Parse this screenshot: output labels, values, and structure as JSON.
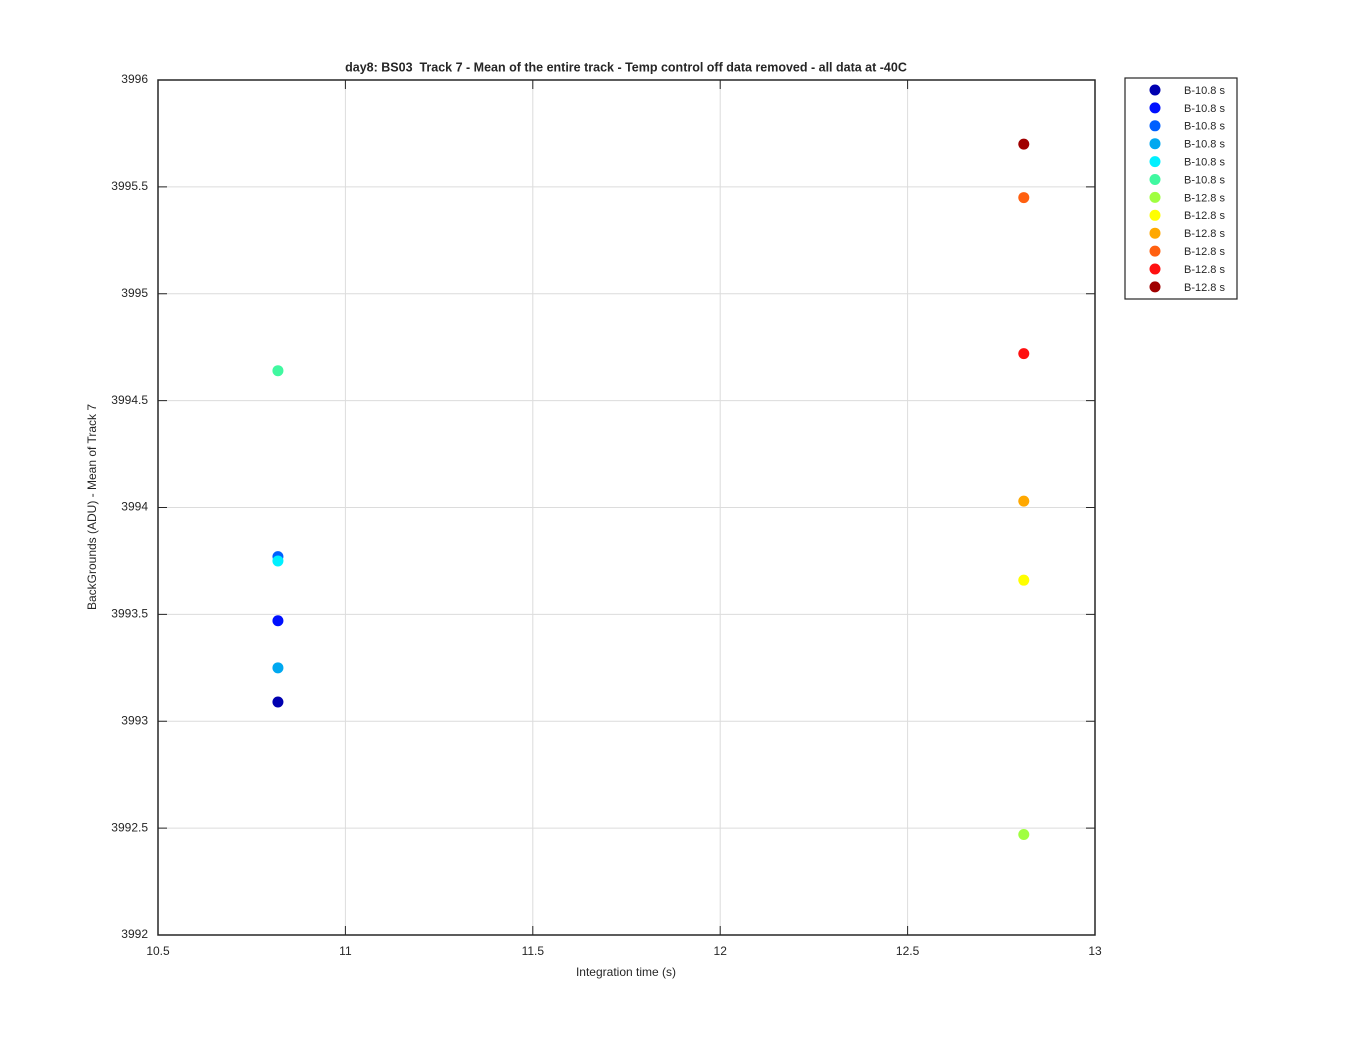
{
  "chart_data": {
    "type": "scatter",
    "title": "day8: BS03  Track 7 - Mean of the entire track - Temp control off data removed - all data at -40C",
    "x_label": "Integration time (s)",
    "y_label": "BackGrounds (ADU) - Mean of Track 7",
    "xlim": [
      10.5,
      13
    ],
    "xticks": [
      10.5,
      11,
      11.5,
      12,
      12.5,
      13
    ],
    "ylim": [
      3992,
      3996
    ],
    "yticks": [
      3992,
      3992.5,
      3993,
      3993.5,
      3994,
      3994.5,
      3995,
      3995.5,
      3996
    ],
    "grid": true,
    "legend_position": "outside-top-right",
    "series": [
      {
        "name": "B-10.8 s",
        "color": "#0000b0",
        "x": [
          10.82
        ],
        "values": [
          3993.09
        ]
      },
      {
        "name": "B-10.8 s",
        "color": "#0010ff",
        "x": [
          10.82
        ],
        "values": [
          3993.47
        ]
      },
      {
        "name": "B-10.8 s",
        "color": "#0060ff",
        "x": [
          10.82
        ],
        "values": [
          3993.77
        ]
      },
      {
        "name": "B-10.8 s",
        "color": "#00a8f0",
        "x": [
          10.82
        ],
        "values": [
          3993.25
        ]
      },
      {
        "name": "B-10.8 s",
        "color": "#00f0ff",
        "x": [
          10.82
        ],
        "values": [
          3993.75
        ]
      },
      {
        "name": "B-10.8 s",
        "color": "#40f8a0",
        "x": [
          10.82
        ],
        "values": [
          3994.64
        ]
      },
      {
        "name": "B-12.8 s",
        "color": "#a0ff40",
        "x": [
          12.81
        ],
        "values": [
          3992.47
        ]
      },
      {
        "name": "B-12.8 s",
        "color": "#ffff00",
        "x": [
          12.81
        ],
        "values": [
          3993.66
        ]
      },
      {
        "name": "B-12.8 s",
        "color": "#ffa800",
        "x": [
          12.81
        ],
        "values": [
          3994.03
        ]
      },
      {
        "name": "B-12.8 s",
        "color": "#ff6010",
        "x": [
          12.81
        ],
        "values": [
          3995.45
        ]
      },
      {
        "name": "B-12.8 s",
        "color": "#ff1010",
        "x": [
          12.81
        ],
        "values": [
          3994.72
        ]
      },
      {
        "name": "B-12.8 s",
        "color": "#a00000",
        "x": [
          12.81
        ],
        "values": [
          3995.7
        ]
      }
    ]
  }
}
